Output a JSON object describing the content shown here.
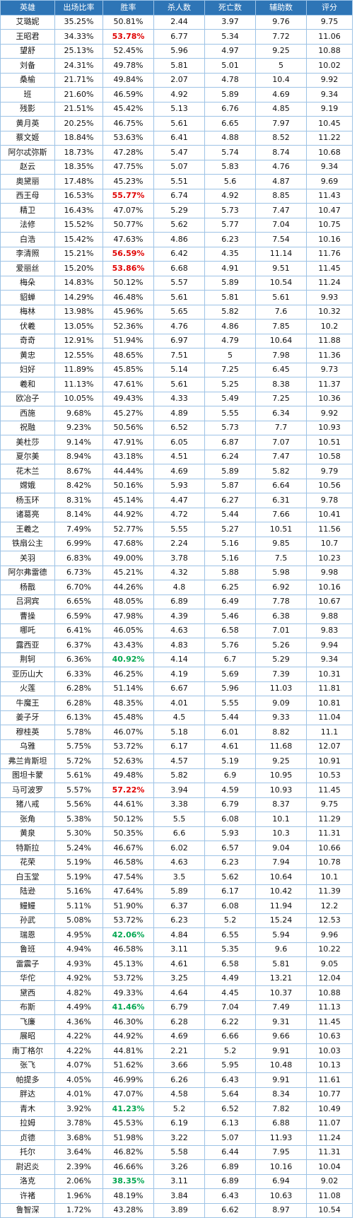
{
  "colors": {
    "header_bg": "#2e75b6",
    "border": "#9dc3e6",
    "high_win": "#e00000",
    "low_win": "#00a650"
  },
  "headers": [
    "英雄",
    "出场比率",
    "胜率",
    "杀人数",
    "死亡数",
    "辅助数",
    "评分"
  ],
  "rows": [
    {
      "hero": "艾璐妮",
      "pick": "35.25%",
      "win": "50.81%",
      "kills": "2.44",
      "deaths": "3.97",
      "assists": "9.76",
      "score": "9.75",
      "mark": ""
    },
    {
      "hero": "王昭君",
      "pick": "34.33%",
      "win": "53.78%",
      "kills": "6.77",
      "deaths": "5.34",
      "assists": "7.72",
      "score": "11.06",
      "mark": "high"
    },
    {
      "hero": "望舒",
      "pick": "25.13%",
      "win": "52.45%",
      "kills": "5.96",
      "deaths": "4.97",
      "assists": "9.25",
      "score": "10.88",
      "mark": ""
    },
    {
      "hero": "刘备",
      "pick": "24.31%",
      "win": "49.78%",
      "kills": "5.81",
      "deaths": "5.01",
      "assists": "5",
      "score": "10.02",
      "mark": ""
    },
    {
      "hero": "桑榆",
      "pick": "21.71%",
      "win": "49.84%",
      "kills": "2.07",
      "deaths": "4.78",
      "assists": "10.4",
      "score": "9.92",
      "mark": ""
    },
    {
      "hero": "班",
      "pick": "21.60%",
      "win": "46.59%",
      "kills": "4.92",
      "deaths": "5.89",
      "assists": "4.69",
      "score": "9.34",
      "mark": ""
    },
    {
      "hero": "残影",
      "pick": "21.51%",
      "win": "45.42%",
      "kills": "5.13",
      "deaths": "6.76",
      "assists": "4.85",
      "score": "9.19",
      "mark": ""
    },
    {
      "hero": "黄月英",
      "pick": "20.25%",
      "win": "46.75%",
      "kills": "5.61",
      "deaths": "6.65",
      "assists": "7.97",
      "score": "10.45",
      "mark": ""
    },
    {
      "hero": "蔡文姬",
      "pick": "18.84%",
      "win": "53.63%",
      "kills": "6.41",
      "deaths": "4.88",
      "assists": "8.52",
      "score": "11.22",
      "mark": ""
    },
    {
      "hero": "阿尔忒弥斯",
      "pick": "18.73%",
      "win": "47.28%",
      "kills": "5.47",
      "deaths": "5.74",
      "assists": "8.74",
      "score": "10.68",
      "mark": ""
    },
    {
      "hero": "赵云",
      "pick": "18.35%",
      "win": "47.75%",
      "kills": "5.07",
      "deaths": "5.83",
      "assists": "4.76",
      "score": "9.34",
      "mark": ""
    },
    {
      "hero": "奥黛丽",
      "pick": "17.48%",
      "win": "45.23%",
      "kills": "5.51",
      "deaths": "5.6",
      "assists": "4.87",
      "score": "9.69",
      "mark": ""
    },
    {
      "hero": "西王母",
      "pick": "16.53%",
      "win": "55.77%",
      "kills": "6.74",
      "deaths": "4.92",
      "assists": "8.85",
      "score": "11.43",
      "mark": "high"
    },
    {
      "hero": "精卫",
      "pick": "16.43%",
      "win": "47.07%",
      "kills": "5.29",
      "deaths": "5.73",
      "assists": "7.47",
      "score": "10.47",
      "mark": ""
    },
    {
      "hero": "法修",
      "pick": "15.52%",
      "win": "50.77%",
      "kills": "5.62",
      "deaths": "5.77",
      "assists": "7.04",
      "score": "10.75",
      "mark": ""
    },
    {
      "hero": "白浩",
      "pick": "15.42%",
      "win": "47.63%",
      "kills": "4.86",
      "deaths": "6.23",
      "assists": "7.54",
      "score": "10.16",
      "mark": ""
    },
    {
      "hero": "李清照",
      "pick": "15.21%",
      "win": "56.59%",
      "kills": "6.42",
      "deaths": "4.35",
      "assists": "11.14",
      "score": "11.76",
      "mark": "high"
    },
    {
      "hero": "爱丽丝",
      "pick": "15.20%",
      "win": "53.86%",
      "kills": "6.68",
      "deaths": "4.91",
      "assists": "9.51",
      "score": "11.45",
      "mark": "high"
    },
    {
      "hero": "梅朵",
      "pick": "14.83%",
      "win": "50.12%",
      "kills": "5.57",
      "deaths": "5.89",
      "assists": "10.54",
      "score": "11.24",
      "mark": ""
    },
    {
      "hero": "貂蝉",
      "pick": "14.29%",
      "win": "46.48%",
      "kills": "5.61",
      "deaths": "5.81",
      "assists": "5.61",
      "score": "9.93",
      "mark": ""
    },
    {
      "hero": "梅林",
      "pick": "13.98%",
      "win": "45.96%",
      "kills": "5.65",
      "deaths": "5.82",
      "assists": "7.6",
      "score": "10.32",
      "mark": ""
    },
    {
      "hero": "伏羲",
      "pick": "13.05%",
      "win": "52.36%",
      "kills": "4.76",
      "deaths": "4.86",
      "assists": "7.85",
      "score": "10.2",
      "mark": ""
    },
    {
      "hero": "奇奇",
      "pick": "12.91%",
      "win": "51.94%",
      "kills": "6.97",
      "deaths": "4.79",
      "assists": "10.64",
      "score": "11.88",
      "mark": ""
    },
    {
      "hero": "黄忠",
      "pick": "12.55%",
      "win": "48.65%",
      "kills": "7.51",
      "deaths": "5",
      "assists": "7.98",
      "score": "11.36",
      "mark": ""
    },
    {
      "hero": "妇好",
      "pick": "11.89%",
      "win": "45.85%",
      "kills": "5.14",
      "deaths": "7.25",
      "assists": "6.45",
      "score": "9.73",
      "mark": ""
    },
    {
      "hero": "羲和",
      "pick": "11.13%",
      "win": "47.61%",
      "kills": "5.61",
      "deaths": "5.25",
      "assists": "8.38",
      "score": "11.37",
      "mark": ""
    },
    {
      "hero": "欧冶子",
      "pick": "10.05%",
      "win": "49.43%",
      "kills": "4.33",
      "deaths": "5.49",
      "assists": "7.25",
      "score": "10.36",
      "mark": ""
    },
    {
      "hero": "西施",
      "pick": "9.68%",
      "win": "45.27%",
      "kills": "4.89",
      "deaths": "5.55",
      "assists": "6.34",
      "score": "9.92",
      "mark": ""
    },
    {
      "hero": "祝融",
      "pick": "9.23%",
      "win": "50.56%",
      "kills": "6.52",
      "deaths": "5.73",
      "assists": "7.7",
      "score": "10.93",
      "mark": ""
    },
    {
      "hero": "美杜莎",
      "pick": "9.14%",
      "win": "47.91%",
      "kills": "6.05",
      "deaths": "6.87",
      "assists": "7.07",
      "score": "10.51",
      "mark": ""
    },
    {
      "hero": "夏尔美",
      "pick": "8.94%",
      "win": "43.18%",
      "kills": "4.51",
      "deaths": "6.24",
      "assists": "7.47",
      "score": "10.58",
      "mark": ""
    },
    {
      "hero": "花木兰",
      "pick": "8.67%",
      "win": "44.44%",
      "kills": "4.69",
      "deaths": "5.89",
      "assists": "5.82",
      "score": "9.79",
      "mark": ""
    },
    {
      "hero": "嫦娥",
      "pick": "8.42%",
      "win": "50.16%",
      "kills": "5.93",
      "deaths": "5.87",
      "assists": "6.64",
      "score": "10.56",
      "mark": ""
    },
    {
      "hero": "杨玉环",
      "pick": "8.31%",
      "win": "45.14%",
      "kills": "4.47",
      "deaths": "6.27",
      "assists": "6.31",
      "score": "9.78",
      "mark": ""
    },
    {
      "hero": "诸葛亮",
      "pick": "8.14%",
      "win": "44.92%",
      "kills": "4.72",
      "deaths": "5.44",
      "assists": "7.66",
      "score": "10.41",
      "mark": ""
    },
    {
      "hero": "王羲之",
      "pick": "7.49%",
      "win": "52.77%",
      "kills": "5.55",
      "deaths": "5.27",
      "assists": "10.51",
      "score": "11.56",
      "mark": ""
    },
    {
      "hero": "铁扇公主",
      "pick": "6.99%",
      "win": "47.68%",
      "kills": "2.24",
      "deaths": "5.16",
      "assists": "9.85",
      "score": "10.7",
      "mark": ""
    },
    {
      "hero": "关羽",
      "pick": "6.83%",
      "win": "49.00%",
      "kills": "3.78",
      "deaths": "5.16",
      "assists": "7.5",
      "score": "10.23",
      "mark": ""
    },
    {
      "hero": "阿尔弗雷德",
      "pick": "6.73%",
      "win": "45.21%",
      "kills": "4.32",
      "deaths": "5.88",
      "assists": "5.98",
      "score": "9.98",
      "mark": ""
    },
    {
      "hero": "杨戬",
      "pick": "6.70%",
      "win": "44.26%",
      "kills": "4.8",
      "deaths": "6.25",
      "assists": "6.92",
      "score": "10.16",
      "mark": ""
    },
    {
      "hero": "吕洞宾",
      "pick": "6.65%",
      "win": "48.05%",
      "kills": "6.89",
      "deaths": "6.49",
      "assists": "7.78",
      "score": "10.67",
      "mark": ""
    },
    {
      "hero": "曹操",
      "pick": "6.59%",
      "win": "47.98%",
      "kills": "4.39",
      "deaths": "5.46",
      "assists": "6.38",
      "score": "9.88",
      "mark": ""
    },
    {
      "hero": "哪吒",
      "pick": "6.41%",
      "win": "46.05%",
      "kills": "4.63",
      "deaths": "6.58",
      "assists": "7.01",
      "score": "9.83",
      "mark": ""
    },
    {
      "hero": "露西亚",
      "pick": "6.37%",
      "win": "43.43%",
      "kills": "4.83",
      "deaths": "5.76",
      "assists": "5.26",
      "score": "9.94",
      "mark": ""
    },
    {
      "hero": "荆轲",
      "pick": "6.36%",
      "win": "40.92%",
      "kills": "4.14",
      "deaths": "6.7",
      "assists": "5.29",
      "score": "9.34",
      "mark": "low"
    },
    {
      "hero": "亚历山大",
      "pick": "6.33%",
      "win": "46.25%",
      "kills": "4.19",
      "deaths": "5.69",
      "assists": "7.39",
      "score": "10.31",
      "mark": ""
    },
    {
      "hero": "火莲",
      "pick": "6.28%",
      "win": "51.14%",
      "kills": "6.67",
      "deaths": "5.96",
      "assists": "11.03",
      "score": "11.81",
      "mark": ""
    },
    {
      "hero": "牛魔王",
      "pick": "6.28%",
      "win": "48.35%",
      "kills": "4.01",
      "deaths": "5.55",
      "assists": "9.09",
      "score": "10.81",
      "mark": ""
    },
    {
      "hero": "姜子牙",
      "pick": "6.13%",
      "win": "45.48%",
      "kills": "4.5",
      "deaths": "5.44",
      "assists": "9.33",
      "score": "11.04",
      "mark": ""
    },
    {
      "hero": "穆桂英",
      "pick": "5.78%",
      "win": "46.07%",
      "kills": "5.18",
      "deaths": "6.01",
      "assists": "8.82",
      "score": "11.1",
      "mark": ""
    },
    {
      "hero": "乌雅",
      "pick": "5.75%",
      "win": "53.72%",
      "kills": "6.17",
      "deaths": "4.61",
      "assists": "11.68",
      "score": "12.07",
      "mark": ""
    },
    {
      "hero": "弗兰肯斯坦",
      "pick": "5.72%",
      "win": "52.63%",
      "kills": "4.57",
      "deaths": "5.19",
      "assists": "9.25",
      "score": "10.91",
      "mark": ""
    },
    {
      "hero": "图坦卡蒙",
      "pick": "5.61%",
      "win": "49.48%",
      "kills": "5.82",
      "deaths": "6.9",
      "assists": "10.95",
      "score": "10.53",
      "mark": ""
    },
    {
      "hero": "马可波罗",
      "pick": "5.57%",
      "win": "57.22%",
      "kills": "3.94",
      "deaths": "4.59",
      "assists": "10.93",
      "score": "11.45",
      "mark": "high"
    },
    {
      "hero": "猪八戒",
      "pick": "5.56%",
      "win": "44.61%",
      "kills": "3.38",
      "deaths": "6.79",
      "assists": "8.37",
      "score": "9.75",
      "mark": ""
    },
    {
      "hero": "张角",
      "pick": "5.38%",
      "win": "50.12%",
      "kills": "5.5",
      "deaths": "6.08",
      "assists": "10.1",
      "score": "11.29",
      "mark": ""
    },
    {
      "hero": "黄泉",
      "pick": "5.30%",
      "win": "50.35%",
      "kills": "6.6",
      "deaths": "5.93",
      "assists": "10.3",
      "score": "11.31",
      "mark": ""
    },
    {
      "hero": "特斯拉",
      "pick": "5.24%",
      "win": "46.67%",
      "kills": "6.02",
      "deaths": "6.57",
      "assists": "9.04",
      "score": "10.66",
      "mark": ""
    },
    {
      "hero": "花荣",
      "pick": "5.19%",
      "win": "46.58%",
      "kills": "4.63",
      "deaths": "6.23",
      "assists": "7.94",
      "score": "10.78",
      "mark": ""
    },
    {
      "hero": "白玉堂",
      "pick": "5.19%",
      "win": "47.54%",
      "kills": "3.5",
      "deaths": "5.62",
      "assists": "10.64",
      "score": "10.1",
      "mark": ""
    },
    {
      "hero": "陆逊",
      "pick": "5.16%",
      "win": "47.64%",
      "kills": "5.89",
      "deaths": "6.17",
      "assists": "10.42",
      "score": "11.39",
      "mark": ""
    },
    {
      "hero": "鳗鳗",
      "pick": "5.11%",
      "win": "51.90%",
      "kills": "6.37",
      "deaths": "6.08",
      "assists": "11.94",
      "score": "12.2",
      "mark": ""
    },
    {
      "hero": "孙武",
      "pick": "5.08%",
      "win": "53.72%",
      "kills": "6.23",
      "deaths": "5.2",
      "assists": "15.24",
      "score": "12.53",
      "mark": ""
    },
    {
      "hero": "瑞恩",
      "pick": "4.95%",
      "win": "42.06%",
      "kills": "4.84",
      "deaths": "6.55",
      "assists": "5.94",
      "score": "9.96",
      "mark": "low"
    },
    {
      "hero": "鲁班",
      "pick": "4.94%",
      "win": "46.58%",
      "kills": "3.11",
      "deaths": "5.35",
      "assists": "9.6",
      "score": "10.22",
      "mark": ""
    },
    {
      "hero": "雷震子",
      "pick": "4.93%",
      "win": "45.13%",
      "kills": "4.61",
      "deaths": "6.58",
      "assists": "5.81",
      "score": "9.05",
      "mark": ""
    },
    {
      "hero": "华佗",
      "pick": "4.92%",
      "win": "53.72%",
      "kills": "3.25",
      "deaths": "4.49",
      "assists": "13.21",
      "score": "12.04",
      "mark": ""
    },
    {
      "hero": "黛西",
      "pick": "4.82%",
      "win": "49.33%",
      "kills": "4.64",
      "deaths": "4.45",
      "assists": "10.37",
      "score": "10.88",
      "mark": ""
    },
    {
      "hero": "布斯",
      "pick": "4.49%",
      "win": "41.46%",
      "kills": "6.79",
      "deaths": "7.04",
      "assists": "7.49",
      "score": "11.13",
      "mark": "low"
    },
    {
      "hero": "飞廉",
      "pick": "4.36%",
      "win": "46.30%",
      "kills": "6.28",
      "deaths": "6.22",
      "assists": "9.31",
      "score": "11.45",
      "mark": ""
    },
    {
      "hero": "展昭",
      "pick": "4.22%",
      "win": "44.92%",
      "kills": "4.69",
      "deaths": "6.66",
      "assists": "9.66",
      "score": "10.63",
      "mark": ""
    },
    {
      "hero": "南丁格尔",
      "pick": "4.22%",
      "win": "44.81%",
      "kills": "2.21",
      "deaths": "5.2",
      "assists": "9.91",
      "score": "10.03",
      "mark": ""
    },
    {
      "hero": "张飞",
      "pick": "4.07%",
      "win": "51.62%",
      "kills": "3.66",
      "deaths": "5.95",
      "assists": "10.48",
      "score": "10.13",
      "mark": ""
    },
    {
      "hero": "帕提多",
      "pick": "4.05%",
      "win": "46.99%",
      "kills": "6.26",
      "deaths": "6.43",
      "assists": "9.91",
      "score": "11.61",
      "mark": ""
    },
    {
      "hero": "胖达",
      "pick": "4.01%",
      "win": "47.07%",
      "kills": "4.58",
      "deaths": "5.64",
      "assists": "8.34",
      "score": "10.77",
      "mark": ""
    },
    {
      "hero": "青木",
      "pick": "3.92%",
      "win": "41.23%",
      "kills": "5.2",
      "deaths": "6.52",
      "assists": "7.82",
      "score": "10.49",
      "mark": "low"
    },
    {
      "hero": "拉姆",
      "pick": "3.78%",
      "win": "45.53%",
      "kills": "6.19",
      "deaths": "6.13",
      "assists": "6.88",
      "score": "11.07",
      "mark": ""
    },
    {
      "hero": "贞德",
      "pick": "3.68%",
      "win": "51.98%",
      "kills": "3.22",
      "deaths": "5.07",
      "assists": "11.93",
      "score": "11.24",
      "mark": ""
    },
    {
      "hero": "托尔",
      "pick": "3.64%",
      "win": "46.82%",
      "kills": "5.58",
      "deaths": "6.44",
      "assists": "7.95",
      "score": "11.31",
      "mark": ""
    },
    {
      "hero": "尉迟炎",
      "pick": "2.39%",
      "win": "46.66%",
      "kills": "3.26",
      "deaths": "6.89",
      "assists": "10.16",
      "score": "10.04",
      "mark": ""
    },
    {
      "hero": "洛克",
      "pick": "2.06%",
      "win": "38.35%",
      "kills": "3.11",
      "deaths": "6.89",
      "assists": "6.94",
      "score": "9.02",
      "mark": "low"
    },
    {
      "hero": "许褚",
      "pick": "1.96%",
      "win": "48.19%",
      "kills": "3.84",
      "deaths": "6.43",
      "assists": "10.63",
      "score": "11.08",
      "mark": ""
    },
    {
      "hero": "鲁智深",
      "pick": "1.72%",
      "win": "43.28%",
      "kills": "3.89",
      "deaths": "6.62",
      "assists": "8.97",
      "score": "10.54",
      "mark": ""
    }
  ]
}
